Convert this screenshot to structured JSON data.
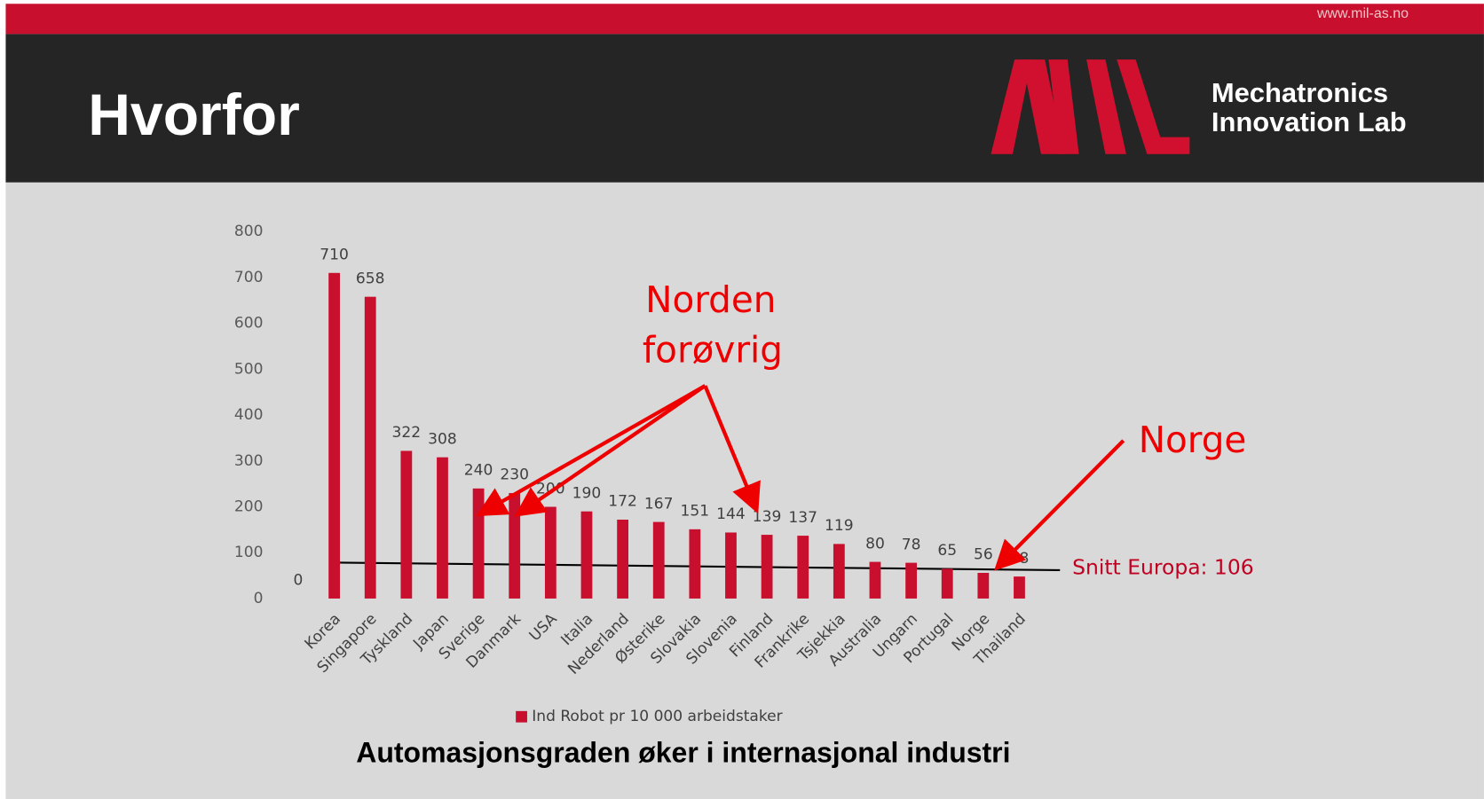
{
  "header": {
    "url": "www.mil-as.no",
    "title": "Hvorfor",
    "logo_text": [
      "Mechatronics",
      "Innovation Lab"
    ]
  },
  "chart_data": {
    "type": "bar",
    "title": "Automasjonsgraden øker i internasjonal industri",
    "categories": [
      null,
      "Korea",
      "Singapore",
      "Tyskland",
      "Japan",
      "Sverige",
      "Danmark",
      "USA",
      "Italia",
      "Nederland",
      "Østerike",
      "Slovakia",
      "Slovenia",
      "Finland",
      "Frankrike",
      "Tsjekkia",
      "Australia",
      "Ungarn",
      "Portugal",
      "Norge",
      "Thailand"
    ],
    "series": [
      {
        "name": "Ind Robot pr 10 000 arbeidstaker",
        "color": "#c8102e",
        "values": [
          0,
          710,
          658,
          322,
          308,
          240,
          230,
          200,
          190,
          172,
          167,
          151,
          144,
          139,
          137,
          119,
          80,
          78,
          65,
          56,
          48
        ]
      }
    ],
    "ylim": [
      0,
      800
    ],
    "yticks": [
      0,
      100,
      200,
      300,
      400,
      500,
      600,
      700,
      800
    ],
    "grid": false,
    "legend": "bottom",
    "annotations": [
      "Norden",
      "forøvrig",
      "Norge",
      "Snitt Europa: 106"
    ]
  }
}
